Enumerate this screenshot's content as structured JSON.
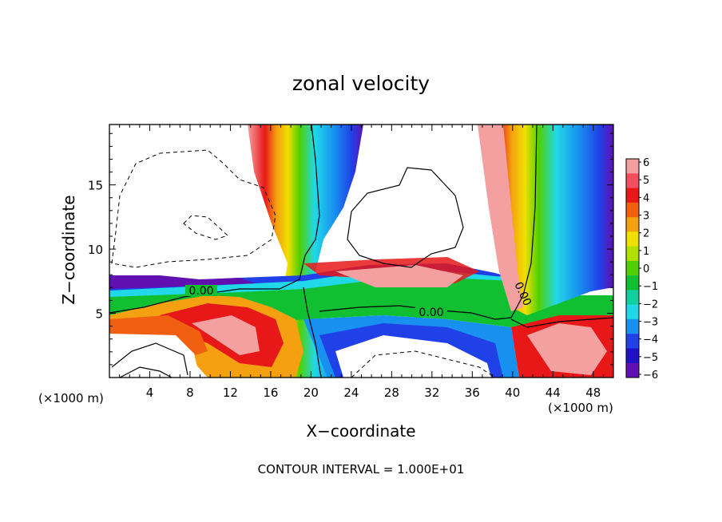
{
  "chart_data": {
    "type": "heatmap",
    "title": "zonal velocity",
    "xlabel": "X−coordinate",
    "ylabel": "Z−coordinate",
    "xlim": [
      0,
      50
    ],
    "ylim": [
      0,
      19.7
    ],
    "x_ticks": [
      4,
      8,
      12,
      16,
      20,
      24,
      28,
      32,
      36,
      40,
      44,
      48
    ],
    "y_ticks": [
      5,
      10,
      15
    ],
    "x_unit_left": "(×1000 m)",
    "x_unit_right": "(×1000 m)",
    "colorbar": {
      "labels": [
        "6",
        "5",
        "4",
        "3",
        "2",
        "1",
        "0",
        "−1",
        "−2",
        "−3",
        "−4",
        "−5",
        "−6"
      ],
      "colors": [
        "#f4a0a0",
        "#f25060",
        "#e81818",
        "#f06010",
        "#f5a010",
        "#f0e000",
        "#b0e000",
        "#50d000",
        "#10c030",
        "#10d0a0",
        "#20d8e8",
        "#1890f0",
        "#2040e8",
        "#2010c8",
        "#6010b0"
      ]
    },
    "contour_labels": [
      "0.00",
      "0.00",
      "0.00"
    ],
    "footer": "CONTOUR INTERVAL = 1.000E+01"
  }
}
